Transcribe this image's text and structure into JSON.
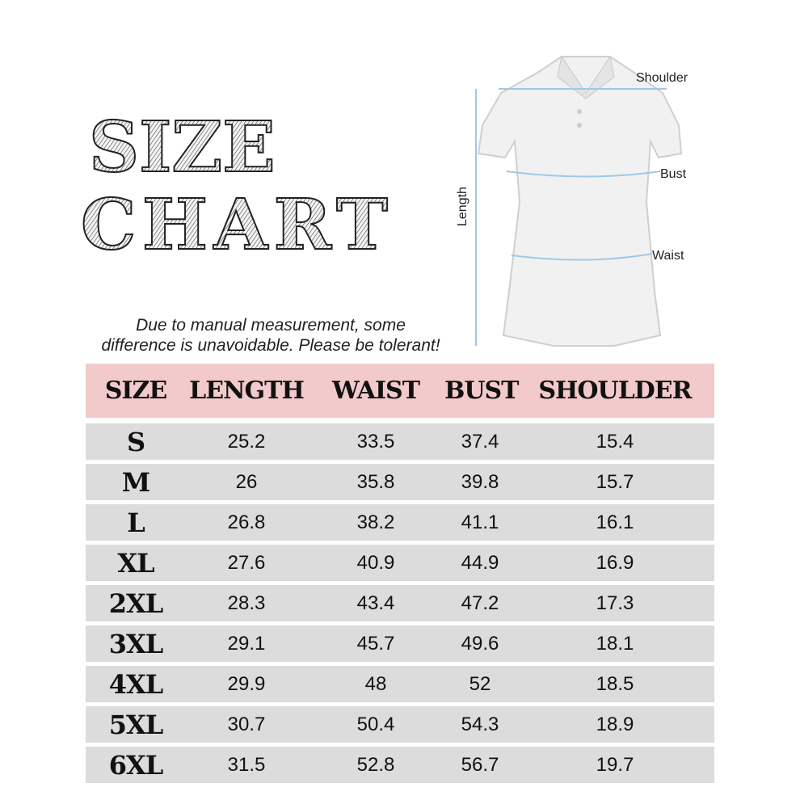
{
  "title": {
    "line1": "SIZE",
    "line2": "CHART"
  },
  "note": {
    "line1": "Due to manual measurement, some",
    "line2": "difference is unavoidable. Please be tolerant!"
  },
  "diagram": {
    "shoulder": "Shoulder",
    "bust": "Bust",
    "waist": "Waist",
    "length": "Length",
    "line_color": "#9ec9e6"
  },
  "colors": {
    "header_bg": "#f3cacb",
    "row_bg": "#dcdcdc"
  },
  "table": {
    "headers": [
      "SIZE",
      "LENGTH",
      "WAIST",
      "BUST",
      "SHOULDER"
    ],
    "rows": [
      [
        "S",
        "25.2",
        "33.5",
        "37.4",
        "15.4"
      ],
      [
        "M",
        "26",
        "35.8",
        "39.8",
        "15.7"
      ],
      [
        "L",
        "26.8",
        "38.2",
        "41.1",
        "16.1"
      ],
      [
        "XL",
        "27.6",
        "40.9",
        "44.9",
        "16.9"
      ],
      [
        "2XL",
        "28.3",
        "43.4",
        "47.2",
        "17.3"
      ],
      [
        "3XL",
        "29.1",
        "45.7",
        "49.6",
        "18.1"
      ],
      [
        "4XL",
        "29.9",
        "48",
        "52",
        "18.5"
      ],
      [
        "5XL",
        "30.7",
        "50.4",
        "54.3",
        "18.9"
      ],
      [
        "6XL",
        "31.5",
        "52.8",
        "56.7",
        "19.7"
      ]
    ]
  }
}
